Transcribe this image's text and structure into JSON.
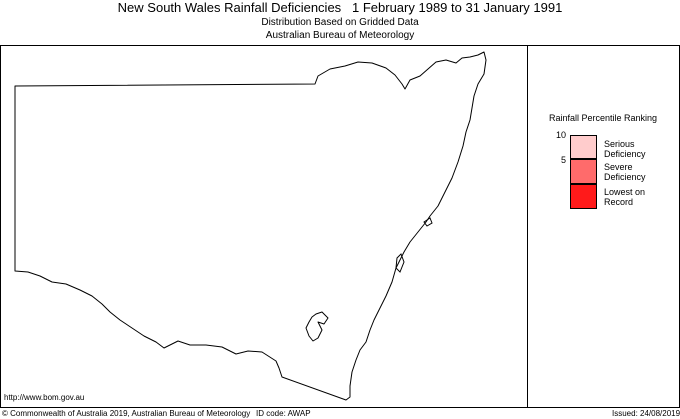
{
  "header": {
    "title": "New South Wales Rainfall Deficiencies   1 February 1989 to 31 January 1991",
    "subtitle_1": "Distribution Based on Gridded Data",
    "subtitle_2": "Australian Bureau of Meteorology"
  },
  "legend": {
    "title": "Rainfall Percentile Ranking",
    "ticks": [
      "10",
      "5"
    ],
    "categories": [
      {
        "label": "Serious\nDeficiency",
        "color": "#ffcccc"
      },
      {
        "label": "Severe\nDeficiency",
        "color": "#ff6b6b"
      },
      {
        "label": "Lowest on\nRecord",
        "color": "#ff1a1a"
      }
    ]
  },
  "footer": {
    "url": "http://www.bom.gov.au",
    "copyright": "© Commonwealth of Australia 2019, Australian Bureau of Meteorology",
    "id_code": "ID code: AWAP",
    "issued": "Issued: 24/08/2019"
  },
  "map": {
    "region": "New South Wales",
    "outline_color": "#000000",
    "background_color": "#ffffff"
  }
}
